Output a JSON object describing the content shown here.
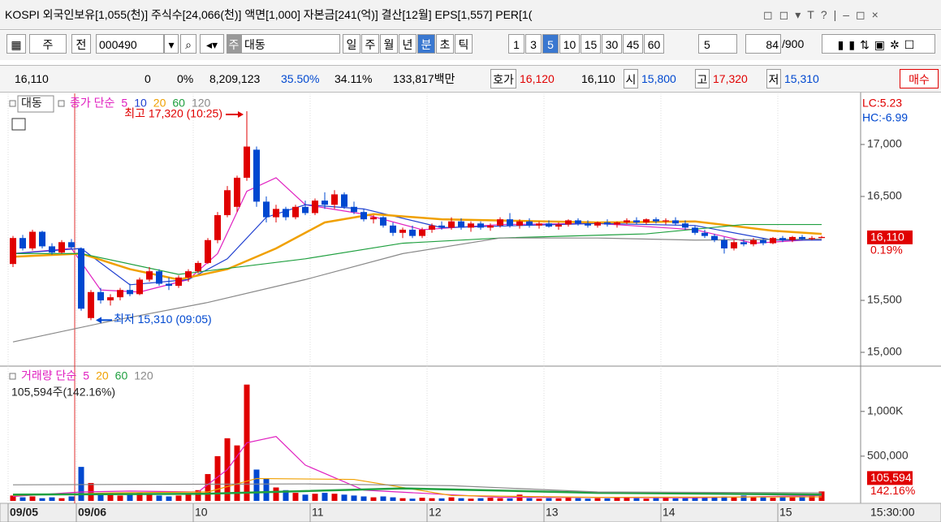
{
  "title_bar": {
    "info": "KOSPI 외국인보유[1,055(천)] 주식수[24,066(천)] 액면[1,000] 자본금[241(억)] 결산[12월] EPS[1,557] PER[1("
  },
  "toolbar": {
    "market": "주",
    "scope": "전",
    "code": "000490",
    "name_tag": "주",
    "name": "대동",
    "periods": [
      "일",
      "주",
      "월",
      "년",
      "분",
      "초",
      "틱"
    ],
    "active_period": 4,
    "minutes": [
      "1",
      "3",
      "5",
      "10",
      "15",
      "30",
      "45",
      "60"
    ],
    "active_minute": 2,
    "count_select": "5",
    "count": "84",
    "max": "/900"
  },
  "quote": {
    "price": "16,110",
    "change": "0",
    "rate": "0%",
    "volume": "8,209,123",
    "ratio1": "35.50%",
    "ratio2": "34.11%",
    "amount": "133,817백만",
    "ask_label": "호가",
    "ask": "16,120",
    "bid": "16,110",
    "open_label": "시",
    "open": "15,800",
    "high_label": "고",
    "high": "17,320",
    "low_label": "저",
    "low": "15,310",
    "buy": "매수"
  },
  "price_chart": {
    "type": "candlestick",
    "tag": "대동",
    "legend_prefix": "종가 단순",
    "up_color": "#e00000",
    "down_color": "#0048d0",
    "ylim": [
      14875,
      17492
    ],
    "yticks": [
      {
        "value": 17000,
        "label": "17,000"
      },
      {
        "value": 16500,
        "label": "16,500"
      },
      {
        "value": 15500,
        "label": "15,500"
      },
      {
        "value": 15000,
        "label": "15,000"
      }
    ],
    "candles": [
      [
        15850,
        16120,
        15820,
        16100
      ],
      [
        16100,
        16130,
        15980,
        16000
      ],
      [
        16000,
        16180,
        15980,
        16160
      ],
      [
        16160,
        16170,
        16000,
        16020
      ],
      [
        16020,
        16050,
        15940,
        15960
      ],
      [
        15960,
        16080,
        15950,
        16060
      ],
      [
        16060,
        16090,
        15990,
        16010
      ],
      [
        16000,
        16010,
        15400,
        15420
      ],
      [
        15330,
        15600,
        15310,
        15580
      ],
      [
        15580,
        15620,
        15470,
        15500
      ],
      [
        15500,
        15560,
        15450,
        15530
      ],
      [
        15530,
        15620,
        15500,
        15600
      ],
      [
        15600,
        15660,
        15540,
        15560
      ],
      [
        15560,
        15720,
        15550,
        15700
      ],
      [
        15700,
        15820,
        15680,
        15780
      ],
      [
        15780,
        15800,
        15640,
        15660
      ],
      [
        15660,
        15720,
        15600,
        15640
      ],
      [
        15640,
        15740,
        15620,
        15720
      ],
      [
        15720,
        15800,
        15680,
        15780
      ],
      [
        15780,
        15880,
        15760,
        15860
      ],
      [
        15860,
        16100,
        15850,
        16080
      ],
      [
        16080,
        16350,
        16050,
        16320
      ],
      [
        16320,
        16600,
        16300,
        16560
      ],
      [
        16400,
        16700,
        16350,
        16680
      ],
      [
        16680,
        17320,
        16650,
        16980
      ],
      [
        16950,
        16980,
        16400,
        16450
      ],
      [
        16450,
        16500,
        16250,
        16300
      ],
      [
        16300,
        16420,
        16250,
        16380
      ],
      [
        16380,
        16400,
        16270,
        16300
      ],
      [
        16300,
        16420,
        16280,
        16400
      ],
      [
        16400,
        16460,
        16320,
        16340
      ],
      [
        16340,
        16480,
        16320,
        16460
      ],
      [
        16460,
        16540,
        16380,
        16420
      ],
      [
        16420,
        16560,
        16380,
        16520
      ],
      [
        16520,
        16540,
        16380,
        16400
      ],
      [
        16400,
        16450,
        16330,
        16350
      ],
      [
        16350,
        16380,
        16260,
        16280
      ],
      [
        16280,
        16320,
        16240,
        16300
      ],
      [
        16300,
        16310,
        16200,
        16220
      ],
      [
        16220,
        16250,
        16120,
        16150
      ],
      [
        16150,
        16200,
        16100,
        16180
      ],
      [
        16180,
        16220,
        16100,
        16120
      ],
      [
        16120,
        16200,
        16100,
        16180
      ],
      [
        16180,
        16240,
        16150,
        16220
      ],
      [
        16220,
        16260,
        16180,
        16200
      ],
      [
        16200,
        16300,
        16180,
        16260
      ],
      [
        16260,
        16290,
        16180,
        16200
      ],
      [
        16200,
        16260,
        16160,
        16240
      ],
      [
        16240,
        16260,
        16180,
        16200
      ],
      [
        16200,
        16240,
        16170,
        16220
      ],
      [
        16220,
        16300,
        16200,
        16280
      ],
      [
        16280,
        16340,
        16200,
        16220
      ],
      [
        16220,
        16280,
        16190,
        16260
      ],
      [
        16260,
        16290,
        16200,
        16220
      ],
      [
        16220,
        16260,
        16190,
        16240
      ],
      [
        16240,
        16270,
        16200,
        16210
      ],
      [
        16210,
        16250,
        16180,
        16230
      ],
      [
        16230,
        16280,
        16210,
        16270
      ],
      [
        16270,
        16290,
        16220,
        16240
      ],
      [
        16240,
        16270,
        16200,
        16220
      ],
      [
        16220,
        16260,
        16200,
        16250
      ],
      [
        16250,
        16280,
        16210,
        16230
      ],
      [
        16230,
        16260,
        16200,
        16250
      ],
      [
        16250,
        16290,
        16230,
        16270
      ],
      [
        16270,
        16300,
        16230,
        16250
      ],
      [
        16250,
        16290,
        16230,
        16280
      ],
      [
        16280,
        16300,
        16240,
        16260
      ],
      [
        16260,
        16290,
        16230,
        16270
      ],
      [
        16270,
        16300,
        16220,
        16240
      ],
      [
        16240,
        16270,
        16180,
        16200
      ],
      [
        16200,
        16220,
        16130,
        16150
      ],
      [
        16150,
        16180,
        16100,
        16120
      ],
      [
        16120,
        16140,
        16060,
        16080
      ],
      [
        16080,
        16110,
        15950,
        16000
      ],
      [
        16000,
        16080,
        15980,
        16060
      ],
      [
        16060,
        16090,
        16020,
        16040
      ],
      [
        16040,
        16100,
        16020,
        16080
      ],
      [
        16080,
        16100,
        16030,
        16050
      ],
      [
        16050,
        16110,
        16040,
        16100
      ],
      [
        16100,
        16120,
        16060,
        16080
      ],
      [
        16080,
        16120,
        16060,
        16110
      ],
      [
        16110,
        16130,
        16080,
        16090
      ],
      [
        16090,
        16120,
        16080,
        16100
      ],
      [
        16100,
        16120,
        16100,
        16110
      ]
    ],
    "series": [
      {
        "name": "5",
        "color": "#e020c0",
        "x": [
          0,
          6,
          9,
          13,
          18,
          21,
          24,
          27,
          30,
          36,
          42,
          50,
          60,
          70,
          76,
          83
        ],
        "values": [
          15950,
          16000,
          15600,
          15580,
          15700,
          15950,
          16550,
          16680,
          16420,
          16330,
          16180,
          16230,
          16240,
          16180,
          16050,
          16090
        ]
      },
      {
        "name": "10",
        "color": "#2040d0",
        "x": [
          0,
          7,
          12,
          18,
          22,
          26,
          30,
          36,
          44,
          60,
          70,
          78,
          83
        ],
        "values": [
          15950,
          16000,
          15650,
          15700,
          15900,
          16300,
          16420,
          16380,
          16200,
          16240,
          16220,
          16080,
          16080
        ]
      },
      {
        "name": "20",
        "color": "#f0a000",
        "x": [
          0,
          7,
          12,
          17,
          22,
          27,
          32,
          37,
          44,
          60,
          70,
          78,
          83
        ],
        "values": [
          15920,
          15950,
          15800,
          15700,
          15800,
          16000,
          16250,
          16330,
          16280,
          16250,
          16260,
          16170,
          16140
        ]
      },
      {
        "name": "60",
        "color": "#20a040",
        "x": [
          0,
          7,
          17,
          30,
          40,
          50,
          65,
          75,
          83
        ],
        "values": [
          15950,
          15950,
          15750,
          15900,
          16050,
          16100,
          16140,
          16230,
          16230
        ]
      },
      {
        "name": "120",
        "color": "#888888",
        "x": [
          0,
          10,
          20,
          30,
          40,
          50,
          60,
          70,
          83
        ],
        "values": [
          15100,
          15300,
          15480,
          15700,
          15950,
          16100,
          16100,
          16080,
          16090
        ]
      }
    ],
    "high_note": "최고 17,320 (10:25)",
    "high_index": 24,
    "low_note": "최저 15,310 (09:05)",
    "low_index": 8,
    "lc": "LC:5.23",
    "hc": "HC:-6.99",
    "last": {
      "value": 16110,
      "label": "16,110"
    },
    "last_rate": "0.19%"
  },
  "volume_chart": {
    "type": "bar",
    "legend_prefix": "거래량 단순",
    "info": "105,594주(142.16%)",
    "ylim": [
      0,
      1470000
    ],
    "yticks": [
      {
        "value": 1000000,
        "label": "1,000K"
      },
      {
        "value": 500000,
        "label": "500,000"
      }
    ],
    "values": [
      60000,
      40000,
      50000,
      30000,
      40000,
      30000,
      50000,
      380000,
      200000,
      90000,
      70000,
      60000,
      80000,
      90000,
      70000,
      60000,
      50000,
      60000,
      80000,
      120000,
      300000,
      500000,
      700000,
      620000,
      1300000,
      350000,
      250000,
      150000,
      120000,
      90000,
      70000,
      80000,
      90000,
      80000,
      70000,
      60000,
      50000,
      40000,
      50000,
      40000,
      30000,
      25000,
      35000,
      30000,
      28000,
      40000,
      30000,
      25000,
      30000,
      35000,
      30000,
      28000,
      70000,
      30000,
      25000,
      30000,
      28000,
      35000,
      30000,
      25000,
      30000,
      28000,
      40000,
      35000,
      30000,
      25000,
      30000,
      35000,
      28000,
      30000,
      40000,
      35000,
      45000,
      50000,
      40000,
      60000,
      45000,
      40000,
      35000,
      45000,
      40000,
      50000,
      55000,
      105594
    ],
    "series": [
      {
        "name": "5",
        "color": "#e020c0",
        "x": [
          0,
          7,
          12,
          19,
          22,
          24,
          27,
          30,
          36,
          50,
          70,
          83
        ],
        "values": [
          50000,
          100000,
          110000,
          100000,
          350000,
          650000,
          720000,
          400000,
          120000,
          40000,
          35000,
          60000
        ]
      },
      {
        "name": "20",
        "color": "#f0a000",
        "x": [
          0,
          10,
          20,
          25,
          35,
          45,
          60,
          83
        ],
        "values": [
          60000,
          90000,
          100000,
          250000,
          240000,
          60000,
          40000,
          45000
        ]
      },
      {
        "name": "60",
        "color": "#20a040",
        "x": [
          0,
          20,
          40,
          60,
          83
        ],
        "values": [
          70000,
          80000,
          140000,
          90000,
          70000
        ]
      },
      {
        "name": "120",
        "color": "#888888",
        "x": [
          0,
          30,
          45,
          60,
          83
        ],
        "values": [
          180000,
          190000,
          170000,
          100000,
          90000
        ]
      }
    ],
    "last": {
      "value": 105594,
      "label": "105,594"
    },
    "last_rate": "142.16%"
  },
  "x_axis": {
    "labels": [
      {
        "index": 0,
        "label": "09/05"
      },
      {
        "index": 7,
        "label": "09/06"
      },
      {
        "index": 19,
        "label": "10"
      },
      {
        "index": 31,
        "label": "11"
      },
      {
        "index": 43,
        "label": "12"
      },
      {
        "index": 55,
        "label": "13"
      },
      {
        "index": 67,
        "label": "14"
      },
      {
        "index": 79,
        "label": "15"
      }
    ],
    "end_label": "15:30:00"
  }
}
